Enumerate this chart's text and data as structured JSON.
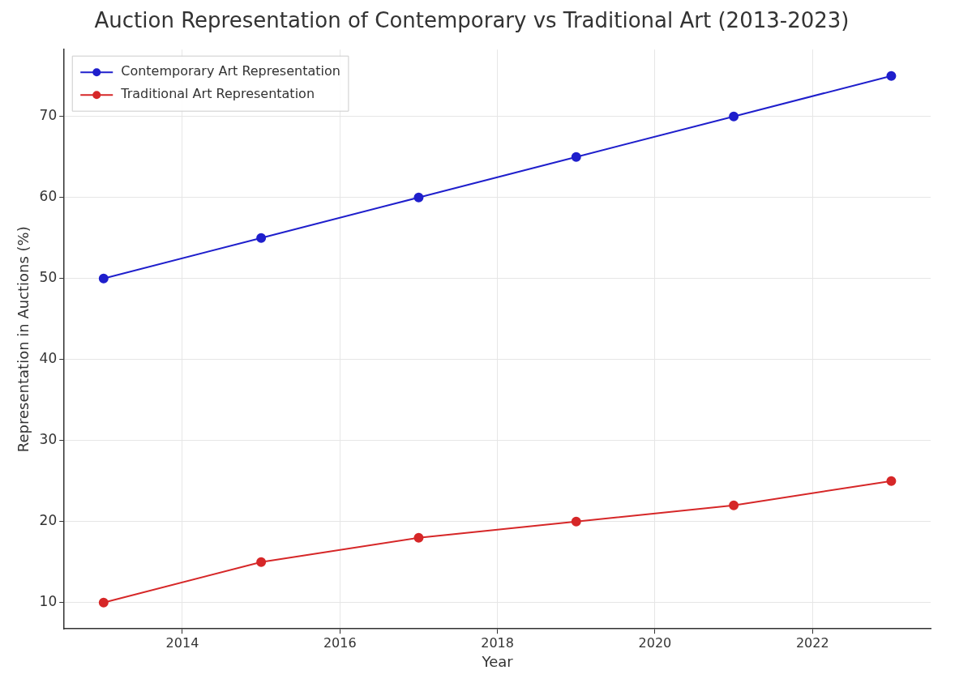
{
  "chart_data": {
    "type": "line",
    "title": "Auction Representation of Contemporary vs Traditional Art (2013-2023)",
    "xlabel": "Year",
    "ylabel": "Representation in Auctions (%)",
    "x": [
      2013,
      2015,
      2017,
      2019,
      2021,
      2023
    ],
    "series": [
      {
        "name": "Contemporary Art Representation",
        "color": "#1f1fcc",
        "values": [
          50,
          55,
          60,
          65,
          70,
          75
        ]
      },
      {
        "name": "Traditional Art Representation",
        "color": "#d62728",
        "values": [
          10,
          15,
          18,
          20,
          22,
          25
        ]
      }
    ],
    "xlim": [
      2012.5,
      2023.5
    ],
    "xticks": [
      2014,
      2016,
      2018,
      2020,
      2022
    ],
    "ylim": [
      6.75,
      78.25
    ],
    "yticks": [
      10,
      20,
      30,
      40,
      50,
      60,
      70
    ],
    "grid": true,
    "legend": "top left",
    "marker": "circle",
    "line_style": "solid"
  }
}
